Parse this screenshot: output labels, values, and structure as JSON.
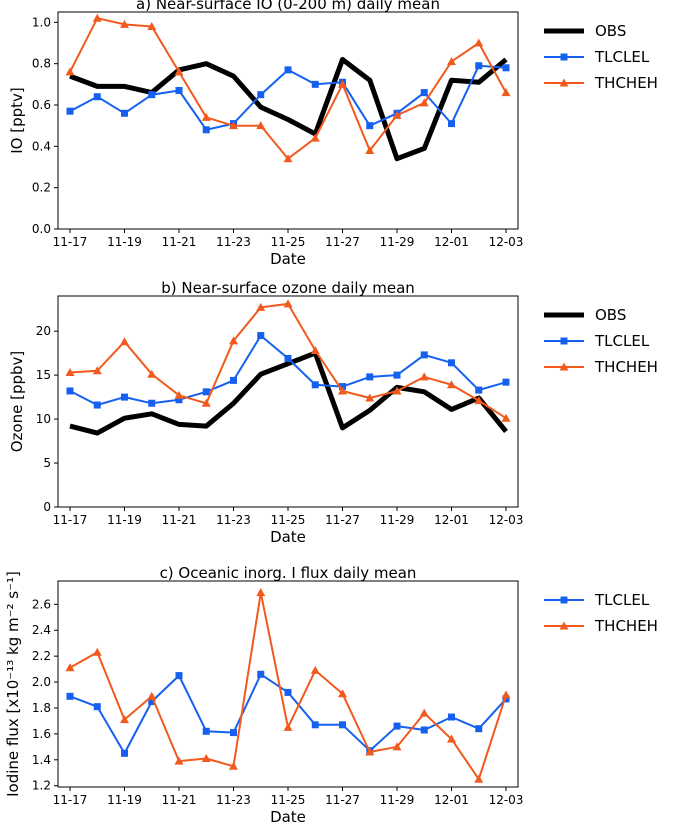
{
  "chart_data": [
    {
      "type": "line",
      "title": "a) Near-surface IO (0-200 m) daily mean",
      "xlabel": "Date",
      "ylabel": "IO [pptv]",
      "ylim": [
        0,
        1.05
      ],
      "ytick_values": [
        0,
        0.2,
        0.4,
        0.6,
        0.8,
        1.0
      ],
      "ytick_labels": [
        "0.0",
        "0.2",
        "0.4",
        "0.6",
        "0.8",
        "1.0"
      ],
      "x": [
        "11-17",
        "11-18",
        "11-19",
        "11-20",
        "11-21",
        "11-22",
        "11-23",
        "11-24",
        "11-25",
        "11-26",
        "11-27",
        "11-28",
        "11-29",
        "11-30",
        "12-01",
        "12-02",
        "12-03"
      ],
      "xtick_labels": [
        "11-17",
        "11-19",
        "11-21",
        "11-23",
        "11-25",
        "11-27",
        "11-29",
        "12-01",
        "12-03"
      ],
      "legend_position": "outside-right",
      "series": [
        {
          "name": "OBS",
          "color": "#000000",
          "marker": "none",
          "values": [
            0.74,
            0.69,
            0.69,
            0.66,
            0.77,
            0.8,
            0.74,
            0.59,
            0.53,
            0.46,
            0.82,
            0.72,
            0.34,
            0.39,
            0.72,
            0.71,
            0.82
          ]
        },
        {
          "name": "TLCLEL",
          "color": "#1560f0",
          "marker": "square",
          "values": [
            0.57,
            0.64,
            0.56,
            0.65,
            0.67,
            0.48,
            0.51,
            0.65,
            0.77,
            0.7,
            0.71,
            0.5,
            0.56,
            0.66,
            0.51,
            0.79,
            0.78
          ]
        },
        {
          "name": "THCHEH",
          "color": "#f25a1d",
          "marker": "triangle",
          "values": [
            0.76,
            1.02,
            0.99,
            0.98,
            0.76,
            0.54,
            0.5,
            0.5,
            0.34,
            0.44,
            0.7,
            0.38,
            0.55,
            0.61,
            0.81,
            0.9,
            0.66
          ]
        }
      ]
    },
    {
      "type": "line",
      "title": "b) Near-surface ozone daily mean",
      "xlabel": "Date",
      "ylabel": "Ozone [ppbv]",
      "ylim": [
        0,
        24
      ],
      "ytick_values": [
        0,
        5,
        10,
        15,
        20
      ],
      "ytick_labels": [
        "0",
        "5",
        "10",
        "15",
        "20"
      ],
      "x": [
        "11-17",
        "11-18",
        "11-19",
        "11-20",
        "11-21",
        "11-22",
        "11-23",
        "11-24",
        "11-25",
        "11-26",
        "11-27",
        "11-28",
        "11-29",
        "11-30",
        "12-01",
        "12-02",
        "12-03"
      ],
      "xtick_labels": [
        "11-17",
        "11-19",
        "11-21",
        "11-23",
        "11-25",
        "11-27",
        "11-29",
        "12-01",
        "12-03"
      ],
      "legend_position": "outside-right",
      "series": [
        {
          "name": "OBS",
          "color": "#000000",
          "marker": "none",
          "values": [
            9.2,
            8.4,
            10.1,
            10.6,
            9.4,
            9.2,
            11.8,
            15.1,
            16.3,
            17.5,
            9.0,
            11.0,
            13.6,
            13.1,
            11.1,
            12.4,
            8.6
          ]
        },
        {
          "name": "TLCLEL",
          "color": "#1560f0",
          "marker": "square",
          "values": [
            13.2,
            11.6,
            12.5,
            11.8,
            12.2,
            13.1,
            14.4,
            19.5,
            16.9,
            13.9,
            13.7,
            14.8,
            15.0,
            17.3,
            16.4,
            13.3,
            14.2
          ]
        },
        {
          "name": "THCHEH",
          "color": "#f25a1d",
          "marker": "triangle",
          "values": [
            15.3,
            15.5,
            18.8,
            15.1,
            12.7,
            11.8,
            18.9,
            22.7,
            23.1,
            17.8,
            13.2,
            12.4,
            13.2,
            14.8,
            13.9,
            12.1,
            10.1
          ]
        }
      ]
    },
    {
      "type": "line",
      "title": "c) Oceanic inorg. I flux daily mean",
      "xlabel": "Date",
      "ylabel": "Iodine flux [x10⁻¹³ kg m⁻² s⁻¹]",
      "ylim": [
        1.19,
        2.78
      ],
      "ytick_values": [
        1.2,
        1.4,
        1.6,
        1.8,
        2.0,
        2.2,
        2.4,
        2.6
      ],
      "ytick_labels": [
        "1.2",
        "1.4",
        "1.6",
        "1.8",
        "2.0",
        "2.2",
        "2.4",
        "2.6"
      ],
      "x": [
        "11-17",
        "11-18",
        "11-19",
        "11-20",
        "11-21",
        "11-22",
        "11-23",
        "11-24",
        "11-25",
        "11-26",
        "11-27",
        "11-28",
        "11-29",
        "11-30",
        "12-01",
        "12-02",
        "12-03"
      ],
      "xtick_labels": [
        "11-17",
        "11-19",
        "11-21",
        "11-23",
        "11-25",
        "11-27",
        "11-29",
        "12-01",
        "12-03"
      ],
      "legend_position": "outside-right",
      "series": [
        {
          "name": "TLCLEL",
          "color": "#1560f0",
          "marker": "square",
          "values": [
            1.89,
            1.81,
            1.45,
            1.85,
            2.05,
            1.62,
            1.61,
            2.06,
            1.92,
            1.67,
            1.67,
            1.47,
            1.66,
            1.63,
            1.73,
            1.64,
            1.87
          ]
        },
        {
          "name": "THCHEH",
          "color": "#f25a1d",
          "marker": "triangle",
          "values": [
            2.11,
            2.23,
            1.71,
            1.89,
            1.39,
            1.41,
            1.35,
            2.69,
            1.65,
            2.09,
            1.91,
            1.46,
            1.5,
            1.76,
            1.56,
            1.25,
            1.9
          ]
        }
      ]
    }
  ]
}
